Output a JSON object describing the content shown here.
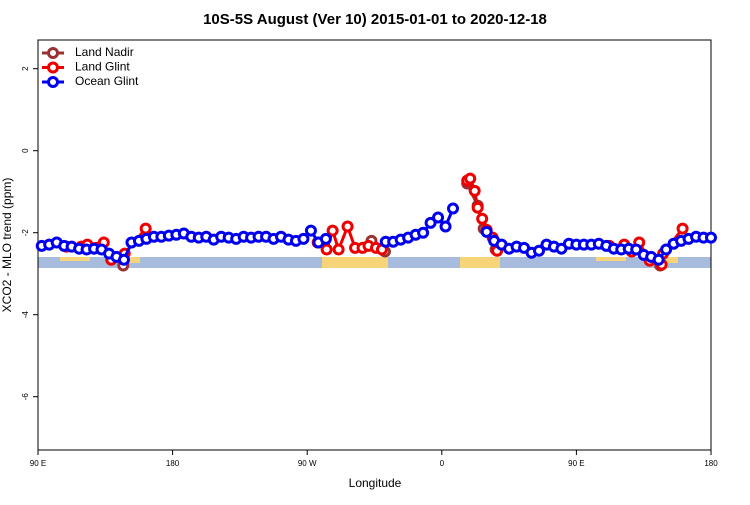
{
  "chart_data": {
    "type": "line",
    "title": "10S-5S August (Ver 10)   2015-01-01 to 2020-12-18",
    "xlabel": "Longitude",
    "ylabel": "XCO2 - MLO trend (ppm)",
    "xlim": [
      90,
      540
    ],
    "ylim": [
      -7.3,
      2.7
    ],
    "xticks": [
      {
        "value": 90,
        "label": "90 E"
      },
      {
        "value": 180,
        "label": "180"
      },
      {
        "value": 270,
        "label": "90 W"
      },
      {
        "value": 360,
        "label": "0"
      },
      {
        "value": 450,
        "label": "90 E"
      },
      {
        "value": 540,
        "label": "180"
      }
    ],
    "yticks": [
      2,
      0,
      -2,
      -4,
      -6
    ],
    "legend": "top-left",
    "series": [
      {
        "name": "Land Nadir",
        "color": "#993333",
        "x": [
          147,
          230,
          313,
          322,
          350,
          377,
          384,
          388,
          396,
          450,
          506
        ],
        "values": [
          -2.8,
          null,
          -2.2,
          -2.46,
          null,
          -0.8,
          -1.34,
          -1.9,
          -2.41,
          null,
          -2.8
        ]
      },
      {
        "name": "Land Glint",
        "color": "#ee0000",
        "x": [
          109,
          119,
          123,
          134,
          139,
          148,
          162,
          220,
          277,
          283,
          287,
          291,
          297,
          302,
          307,
          311,
          316,
          320,
          350,
          377,
          379,
          382,
          384,
          387,
          390,
          394,
          397,
          440,
          472,
          482,
          487,
          492,
          499,
          507,
          508,
          521
        ],
        "values": [
          -2.34,
          -2.34,
          -2.29,
          -2.24,
          -2.66,
          -2.51,
          -1.9,
          null,
          -2.24,
          -2.41,
          -1.95,
          -2.41,
          -1.85,
          -2.37,
          -2.37,
          -2.32,
          -2.37,
          -2.41,
          null,
          -0.73,
          -0.68,
          -0.98,
          -1.39,
          -1.66,
          -1.93,
          -2.12,
          -2.44,
          null,
          -2.32,
          -2.29,
          -2.46,
          -2.24,
          -2.68,
          -2.78,
          -2.51,
          -1.9
        ]
      },
      {
        "name": "Ocean Glint",
        "color": "#0000ee",
        "x": [
          92.5,
          97.5,
          102.5,
          107.5,
          112.5,
          117.5,
          122.5,
          127.5,
          132.5,
          137.5,
          142.5,
          147.5,
          152.5,
          157.5,
          162.5,
          167.5,
          172.5,
          177.5,
          182.5,
          187.5,
          192.5,
          197.5,
          202.5,
          207.5,
          212.5,
          217.5,
          222.5,
          227.5,
          232.5,
          237.5,
          242.5,
          247.5,
          252.5,
          257.5,
          262.5,
          267.5,
          272.5,
          277.5,
          282.5,
          300,
          322.5,
          327.5,
          332.5,
          337.5,
          342.5,
          347.5,
          352.5,
          357.5,
          362.5,
          367.5,
          380,
          390,
          395,
          400,
          405,
          410,
          415,
          420,
          425,
          430,
          435,
          440,
          445,
          450,
          455,
          460,
          465,
          470,
          475,
          480,
          485,
          490,
          495,
          500,
          505,
          510,
          515,
          520,
          525,
          530,
          535,
          540
        ],
        "values": [
          -2.32,
          -2.29,
          -2.24,
          -2.32,
          -2.34,
          -2.39,
          -2.41,
          -2.39,
          -2.41,
          -2.51,
          -2.59,
          -2.66,
          -2.24,
          -2.2,
          -2.15,
          -2.1,
          -2.1,
          -2.07,
          -2.05,
          -2.02,
          -2.1,
          -2.12,
          -2.1,
          -2.17,
          -2.1,
          -2.12,
          -2.15,
          -2.1,
          -2.12,
          -2.1,
          -2.1,
          -2.15,
          -2.1,
          -2.17,
          -2.2,
          -2.15,
          -1.95,
          -2.24,
          -2.15,
          null,
          -2.22,
          -2.22,
          -2.17,
          -2.12,
          -2.05,
          -2.0,
          -1.76,
          -1.63,
          -1.85,
          -1.41,
          null,
          -1.98,
          -2.2,
          -2.29,
          -2.39,
          -2.34,
          -2.37,
          -2.49,
          -2.44,
          -2.29,
          -2.34,
          -2.39,
          -2.27,
          -2.29,
          -2.29,
          -2.29,
          -2.27,
          -2.32,
          -2.39,
          -2.41,
          -2.39,
          -2.41,
          -2.54,
          -2.59,
          -2.66,
          -2.41,
          -2.27,
          -2.2,
          -2.15,
          -2.1,
          -2.12,
          -2.12
        ]
      }
    ]
  }
}
